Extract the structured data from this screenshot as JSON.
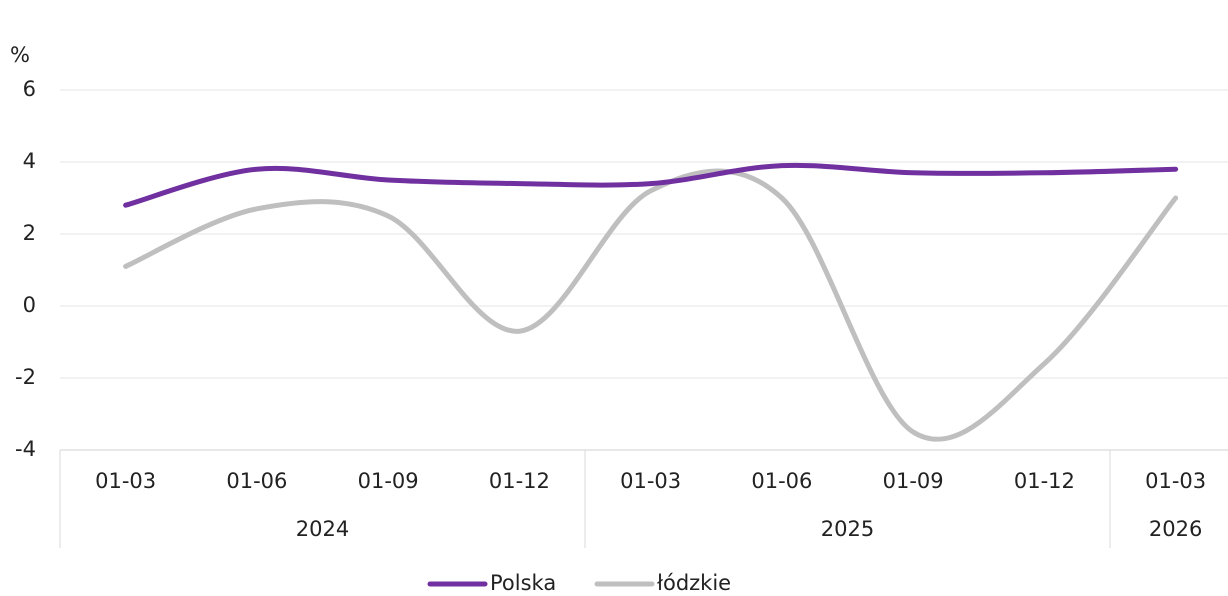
{
  "chart_data": {
    "type": "line",
    "y_unit_label": "%",
    "groups": [
      {
        "name": "2024",
        "categories": [
          "01-03",
          "01-06",
          "01-09",
          "01-12"
        ]
      },
      {
        "name": "2025",
        "categories": [
          "01-03",
          "01-06",
          "01-09",
          "01-12"
        ]
      },
      {
        "name": "2026",
        "categories": [
          "01-03"
        ]
      }
    ],
    "series": [
      {
        "name": "Polska",
        "color": "#7030a0",
        "values": [
          2.8,
          3.8,
          3.5,
          3.4,
          3.4,
          3.9,
          3.7,
          3.7,
          3.8
        ]
      },
      {
        "name": "łódzkie",
        "color": "#bfbfbf",
        "values": [
          1.1,
          2.7,
          2.5,
          -0.7,
          3.2,
          3.0,
          -3.5,
          -1.6,
          3.0
        ]
      }
    ],
    "ylim": [
      -4,
      6
    ],
    "yticks": [
      -4,
      -2,
      0,
      2,
      4,
      6
    ],
    "grid": true,
    "smooth": true,
    "legend": "bottom"
  }
}
